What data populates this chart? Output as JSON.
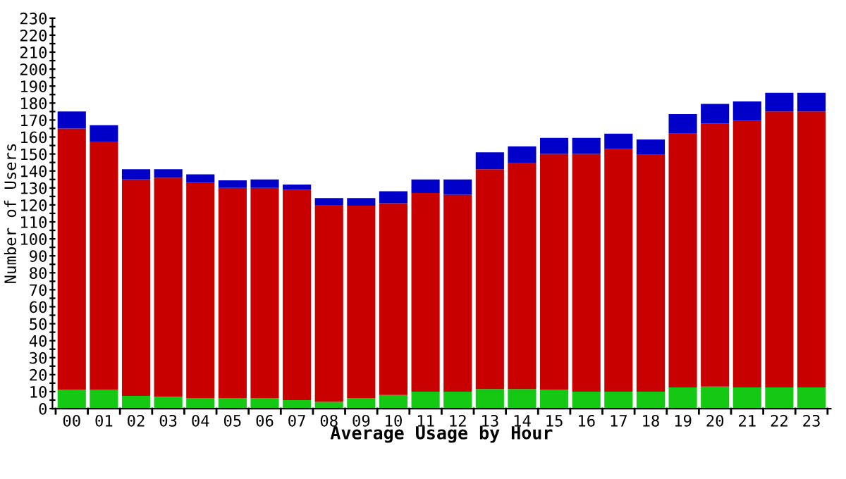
{
  "chart_data": {
    "type": "bar",
    "title": "Average Usage by Hour",
    "ylabel": "Number of Users",
    "stacked": true,
    "categories": [
      "00",
      "01",
      "02",
      "03",
      "04",
      "05",
      "06",
      "07",
      "08",
      "09",
      "10",
      "11",
      "12",
      "13",
      "14",
      "15",
      "16",
      "17",
      "18",
      "19",
      "20",
      "21",
      "22",
      "23"
    ],
    "series": [
      {
        "color": "#14c814",
        "values": [
          11,
          11,
          7.5,
          7,
          6,
          6,
          6,
          5,
          4,
          6,
          8,
          10,
          10,
          11.5,
          11.5,
          11,
          10,
          10,
          10,
          12.5,
          13,
          12.5,
          12.5,
          12.5
        ]
      },
      {
        "color": "#c80000",
        "values": [
          154,
          146,
          127.5,
          129,
          127,
          124,
          124,
          124,
          116,
          113.5,
          113,
          117,
          116,
          129.5,
          133,
          139,
          140,
          143,
          139.5,
          149.5,
          155,
          157,
          162.5,
          162.5
        ]
      },
      {
        "color": "#0000c8",
        "values": [
          10,
          10,
          6,
          5,
          5,
          4.5,
          5,
          3,
          4,
          4.5,
          7,
          8,
          9,
          10,
          10,
          9.5,
          9.5,
          9,
          9,
          11.5,
          11.5,
          11.5,
          11,
          11
        ]
      }
    ],
    "ylim": [
      0,
      230
    ],
    "yticks": [
      0,
      {
        "value": 5,
        "label": null
      },
      10,
      {
        "value": 15,
        "label": null
      },
      20,
      {
        "value": 25,
        "label": null
      },
      30,
      {
        "value": 35,
        "label": null
      },
      40,
      {
        "value": 45,
        "label": null
      },
      50,
      {
        "value": 55,
        "label": null
      },
      60,
      {
        "value": 65,
        "label": null
      },
      70,
      {
        "value": 75,
        "label": null
      },
      80,
      {
        "value": 85,
        "label": null
      },
      90,
      {
        "value": 95,
        "label": null
      },
      100,
      {
        "value": 105,
        "label": null
      },
      110,
      {
        "value": 115,
        "label": null
      },
      120,
      {
        "value": 125,
        "label": null
      },
      130,
      {
        "value": 135,
        "label": null
      },
      140,
      {
        "value": 145,
        "label": null
      },
      150,
      {
        "value": 155,
        "label": null
      },
      160,
      {
        "value": 165,
        "label": null
      },
      170,
      {
        "value": 175,
        "label": null
      },
      180,
      {
        "value": 185,
        "label": null
      },
      190,
      {
        "value": 195,
        "label": null
      },
      200,
      {
        "value": 205,
        "label": null
      },
      210,
      {
        "value": 215,
        "label": null
      },
      220,
      {
        "value": 225,
        "label": null
      },
      230
    ]
  }
}
